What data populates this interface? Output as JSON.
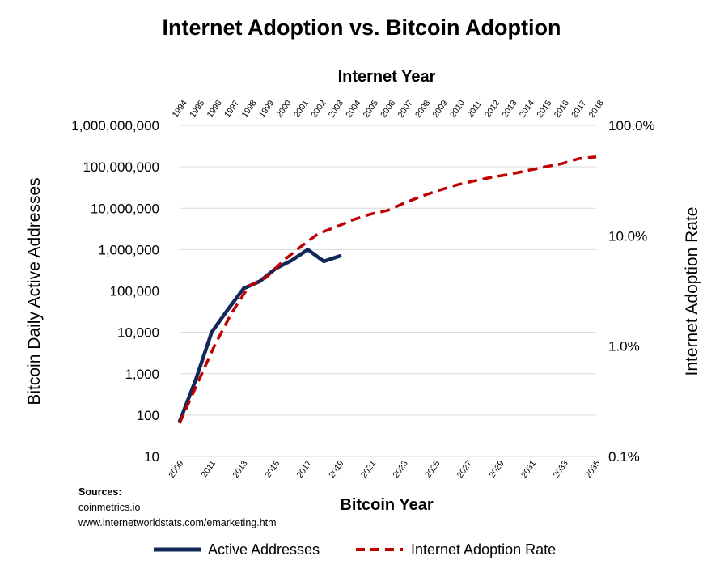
{
  "chart_data": {
    "type": "line",
    "title": "Internet Adoption vs. Bitcoin Adoption",
    "top_xlabel": "Internet Year",
    "xlabel": "Bitcoin Year",
    "ylabel": "Bitcoin Daily Active Addresses",
    "y2label": "Internet Adoption Rate",
    "x_top_categories": [
      "1994",
      "1995",
      "1996",
      "1997",
      "1998",
      "1999",
      "2000",
      "2001",
      "2002",
      "2003",
      "2004",
      "2005",
      "2006",
      "2007",
      "2008",
      "2009",
      "2010",
      "2011",
      "2012",
      "2013",
      "2014",
      "2015",
      "2016",
      "2017",
      "2018"
    ],
    "x_bottom_categories": [
      "2009",
      "2010",
      "2011",
      "2012",
      "2013",
      "2014",
      "2015",
      "2016",
      "2017",
      "2018",
      "2019",
      "2020",
      "2021",
      "2022",
      "2023",
      "2024",
      "2025",
      "2026",
      "2027",
      "2028",
      "2029",
      "2030",
      "2031",
      "2032",
      "2033",
      "2034",
      "2035"
    ],
    "x_bottom_tick_labels": [
      "2009",
      "2011",
      "2013",
      "2015",
      "2017",
      "2019",
      "2021",
      "2023",
      "2025",
      "2027",
      "2029",
      "2031",
      "2033",
      "2035"
    ],
    "y_left_scale": "log",
    "y_left_ticks": [
      "10",
      "100",
      "1,000",
      "10,000",
      "100,000",
      "1,000,000",
      "10,000,000",
      "100,000,000",
      "1,000,000,000"
    ],
    "y_left_lim": [
      10,
      1000000000
    ],
    "y_right_scale": "log",
    "y_right_ticks": [
      "0.1%",
      "1.0%",
      "10.0%",
      "100.0%"
    ],
    "y_right_lim": [
      0.1,
      100
    ],
    "series": [
      {
        "name": "Active Addresses",
        "axis": "left",
        "x_axis": "bottom",
        "color": "#12275a",
        "style": "solid",
        "x": [
          "2009",
          "2010",
          "2011",
          "2012",
          "2013",
          "2014",
          "2015",
          "2016",
          "2017",
          "2018",
          "2019"
        ],
        "values": [
          70,
          700,
          10000,
          35000,
          115000,
          170000,
          350000,
          550000,
          1000000,
          520000,
          700000
        ]
      },
      {
        "name": "Internet Adoption Rate",
        "axis": "right",
        "x_axis": "top",
        "color": "#c00000",
        "style": "dashed",
        "x": [
          "1994",
          "1995",
          "1996",
          "1997",
          "1998",
          "1999",
          "2000",
          "2001",
          "2002",
          "2003",
          "2004",
          "2005",
          "2006",
          "2007",
          "2008",
          "2009",
          "2010",
          "2011",
          "2012",
          "2013",
          "2014",
          "2015",
          "2016",
          "2017",
          "2018"
        ],
        "values": [
          0.2,
          0.45,
          1.0,
          2.0,
          3.5,
          4.2,
          6.0,
          8.0,
          10.5,
          12.0,
          14.0,
          15.7,
          17.0,
          20.0,
          23.0,
          26.0,
          29.0,
          31.5,
          34.0,
          36.0,
          39.0,
          42.0,
          45.0,
          50.0,
          52.0
        ]
      }
    ],
    "grid": "horizontal",
    "legend_position": "bottom"
  },
  "sources": {
    "heading": "Sources:",
    "lines": [
      "coinmetrics.io",
      "www.internetworldstats.com/emarketing.htm"
    ]
  },
  "colors": {
    "active_addresses": "#12275a",
    "internet_rate": "#c00000",
    "grid": "#d9d9d9"
  }
}
